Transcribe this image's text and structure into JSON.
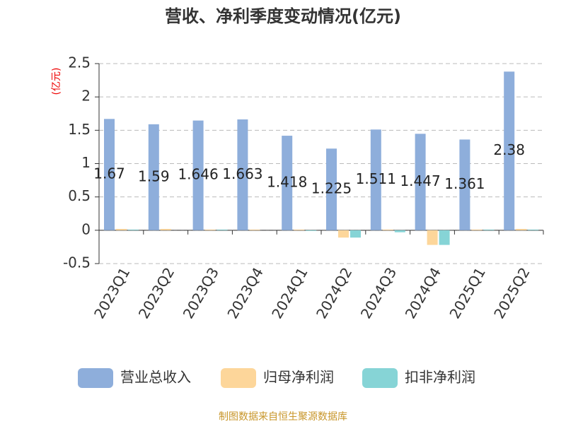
{
  "chart_data": {
    "type": "bar",
    "title": "营收、净利季度变动情况(亿元)",
    "y_unit": "(亿元)",
    "categories": [
      "2023Q1",
      "2023Q2",
      "2023Q3",
      "2023Q4",
      "2024Q1",
      "2024Q2",
      "2024Q3",
      "2024Q4",
      "2025Q1",
      "2025Q2"
    ],
    "series": [
      {
        "name": "营业总收入",
        "color": "#8eaedb",
        "values": [
          1.67,
          1.59,
          1.646,
          1.663,
          1.418,
          1.225,
          1.511,
          1.447,
          1.361,
          2.38
        ],
        "show_labels": true
      },
      {
        "name": "归母净利润",
        "color": "#fdd69a",
        "values": [
          0.02,
          0.02,
          0.01,
          0.01,
          0.01,
          -0.11,
          0.01,
          -0.22,
          0.01,
          0.02
        ]
      },
      {
        "name": "扣非净利润",
        "color": "#86d4d6",
        "values": [
          0.01,
          0.0,
          0.01,
          0.0,
          -0.01,
          -0.11,
          -0.03,
          -0.22,
          0.01,
          0.01
        ]
      }
    ],
    "ylim": [
      -0.5,
      2.5
    ],
    "yticks": [
      -0.5,
      0,
      0.5,
      1,
      1.5,
      2,
      2.5
    ],
    "grid": true,
    "source": "制图数据来自恒生聚源数据库"
  }
}
